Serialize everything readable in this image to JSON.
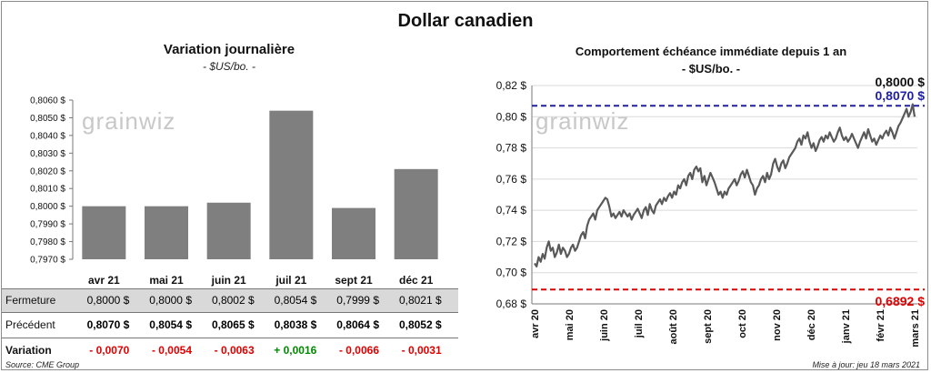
{
  "title": "Dollar canadien",
  "colors": {
    "bar": "#7f7f7f",
    "line": "#595959",
    "blue": "#1f1fa8",
    "red": "#e00000",
    "green": "#008a00",
    "shade": "#d9d9d9"
  },
  "watermark": "grainwiz",
  "left_chart": {
    "title": "Variation  journalière",
    "subtitle": "- $US/bo. -"
  },
  "right_chart": {
    "title": "Comportement échéance immédiate depuis 1 an",
    "subtitle": "- $US/bo. -",
    "last_label": "0,8000 $",
    "high_label": "0,8070 $",
    "low_label": "0,6892 $"
  },
  "chart_data": [
    {
      "type": "bar",
      "categories": [
        "avr 21",
        "mai 21",
        "juin 21",
        "juil 21",
        "sept 21",
        "déc 21"
      ],
      "values": [
        0.8,
        0.8,
        0.8002,
        0.8054,
        0.7999,
        0.8021
      ],
      "ylim": [
        0.797,
        0.806
      ],
      "yticks": [
        "0,7970 $",
        "0,7980 $",
        "0,7990 $",
        "0,8000 $",
        "0,8010 $",
        "0,8020 $",
        "0,8030 $",
        "0,8040 $",
        "0,8050 $",
        "0,8060 $"
      ],
      "grid": false
    },
    {
      "type": "line",
      "x_labels": [
        "avr 20",
        "mai 20",
        "juin 20",
        "juil 20",
        "août 20",
        "sept 20",
        "oct 20",
        "nov 20",
        "déc 20",
        "janv 21",
        "févr 21",
        "mars 21"
      ],
      "ylim": [
        0.68,
        0.82
      ],
      "yticks": [
        "0,68 $",
        "0,70 $",
        "0,72 $",
        "0,74 $",
        "0,76 $",
        "0,78 $",
        "0,80 $",
        "0,82 $"
      ],
      "reference_lines": [
        {
          "value": 0.807,
          "color": "#1f1fa8"
        },
        {
          "value": 0.6892,
          "color": "#e00000"
        }
      ],
      "values": [
        0.706,
        0.704,
        0.71,
        0.707,
        0.712,
        0.709,
        0.716,
        0.72,
        0.714,
        0.716,
        0.71,
        0.713,
        0.718,
        0.712,
        0.716,
        0.714,
        0.71,
        0.712,
        0.716,
        0.718,
        0.714,
        0.716,
        0.72,
        0.724,
        0.726,
        0.722,
        0.73,
        0.734,
        0.736,
        0.738,
        0.734,
        0.74,
        0.742,
        0.744,
        0.746,
        0.748,
        0.747,
        0.742,
        0.736,
        0.738,
        0.735,
        0.737,
        0.739,
        0.736,
        0.74,
        0.738,
        0.736,
        0.738,
        0.734,
        0.737,
        0.739,
        0.741,
        0.738,
        0.735,
        0.74,
        0.742,
        0.737,
        0.744,
        0.74,
        0.738,
        0.743,
        0.745,
        0.747,
        0.744,
        0.748,
        0.746,
        0.749,
        0.751,
        0.748,
        0.752,
        0.75,
        0.756,
        0.754,
        0.758,
        0.76,
        0.756,
        0.762,
        0.764,
        0.76,
        0.766,
        0.768,
        0.765,
        0.767,
        0.758,
        0.762,
        0.756,
        0.76,
        0.764,
        0.761,
        0.758,
        0.754,
        0.75,
        0.752,
        0.748,
        0.752,
        0.75,
        0.754,
        0.756,
        0.758,
        0.76,
        0.756,
        0.759,
        0.763,
        0.765,
        0.761,
        0.766,
        0.762,
        0.758,
        0.756,
        0.75,
        0.754,
        0.756,
        0.76,
        0.762,
        0.758,
        0.764,
        0.76,
        0.763,
        0.77,
        0.773,
        0.768,
        0.765,
        0.77,
        0.772,
        0.767,
        0.77,
        0.774,
        0.776,
        0.778,
        0.78,
        0.784,
        0.786,
        0.782,
        0.788,
        0.786,
        0.79,
        0.784,
        0.78,
        0.783,
        0.778,
        0.781,
        0.785,
        0.787,
        0.784,
        0.788,
        0.786,
        0.79,
        0.787,
        0.784,
        0.786,
        0.79,
        0.793,
        0.788,
        0.785,
        0.787,
        0.784,
        0.786,
        0.789,
        0.786,
        0.783,
        0.78,
        0.784,
        0.787,
        0.79,
        0.786,
        0.792,
        0.788,
        0.784,
        0.786,
        0.782,
        0.785,
        0.788,
        0.786,
        0.789,
        0.791,
        0.788,
        0.793,
        0.79,
        0.786,
        0.79,
        0.794,
        0.796,
        0.799,
        0.802,
        0.805,
        0.8,
        0.803,
        0.808,
        0.8
      ]
    }
  ],
  "table": {
    "rows": [
      {
        "label": "Fermeture",
        "values": [
          "0,8000 $",
          "0,8000 $",
          "0,8002 $",
          "0,8054 $",
          "0,7999 $",
          "0,8021 $"
        ]
      },
      {
        "label": "Précédent",
        "values": [
          "0,8070 $",
          "0,8054 $",
          "0,8065 $",
          "0,8038 $",
          "0,8064 $",
          "0,8052 $"
        ]
      },
      {
        "label": "Variation",
        "values": [
          "- 0,0070",
          "- 0,0054",
          "- 0,0063",
          "+ 0,0016",
          "- 0,0066",
          "- 0,0031"
        ],
        "signs": [
          "neg",
          "neg",
          "neg",
          "pos",
          "neg",
          "neg"
        ]
      }
    ]
  },
  "footer": {
    "source": "Source: CME Group",
    "update": "Mise à jour: jeu 18 mars 2021"
  }
}
